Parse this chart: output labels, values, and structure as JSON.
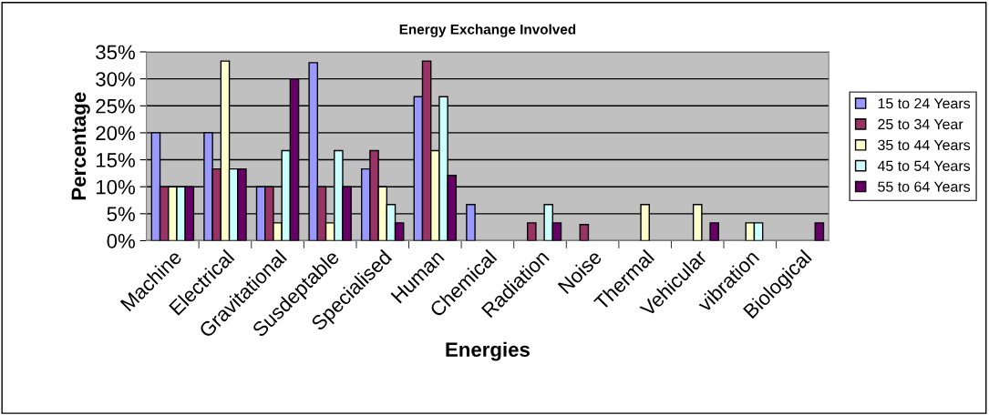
{
  "chart_data": {
    "type": "bar",
    "title": "Energy Exchange Involved",
    "xlabel": "Energies",
    "ylabel": "Percentage",
    "categories": [
      "Machine",
      "Electrical",
      "Gravitational",
      "Susdeptable",
      "Specialised",
      "Human",
      "Chemical",
      "Radiation",
      "Noise",
      "Thermal",
      "Vehicular",
      "vibration",
      "Biological"
    ],
    "series": [
      {
        "name": "15 to 24 Years",
        "color": "#9999ff",
        "values": [
          20,
          20,
          10,
          33,
          13.3,
          26.7,
          6.7,
          null,
          null,
          null,
          null,
          null,
          null
        ]
      },
      {
        "name": "25 to 34 Year",
        "color": "#993366",
        "values": [
          10,
          13.3,
          10,
          10,
          16.7,
          33.3,
          null,
          3.3,
          3,
          null,
          null,
          null,
          null
        ]
      },
      {
        "name": "35 to 44 Years",
        "color": "#ffffcc",
        "values": [
          10,
          33.3,
          3.3,
          3.3,
          10,
          16.7,
          null,
          null,
          null,
          6.7,
          6.7,
          3.3,
          null
        ]
      },
      {
        "name": "45 to 54 Years",
        "color": "#ccffff",
        "values": [
          10,
          13.3,
          16.7,
          16.7,
          6.7,
          26.7,
          null,
          6.7,
          null,
          null,
          null,
          3.3,
          null
        ]
      },
      {
        "name": "55 to 64 Years",
        "color": "#660066",
        "values": [
          10,
          13.3,
          30,
          10,
          3.3,
          12.1,
          null,
          3.3,
          null,
          null,
          3.3,
          null,
          3.3
        ]
      }
    ],
    "ylim": [
      0,
      35
    ],
    "yticks": [
      {
        "value": 0,
        "label": "0%"
      },
      {
        "value": 5,
        "label": "5%"
      },
      {
        "value": 10,
        "label": "10%"
      },
      {
        "value": 15,
        "label": "15%"
      },
      {
        "value": 20,
        "label": "20%"
      },
      {
        "value": 25,
        "label": "25%"
      },
      {
        "value": 30,
        "label": "30%"
      },
      {
        "value": 35,
        "label": "35%"
      }
    ],
    "grid": "y",
    "legend": "right"
  }
}
